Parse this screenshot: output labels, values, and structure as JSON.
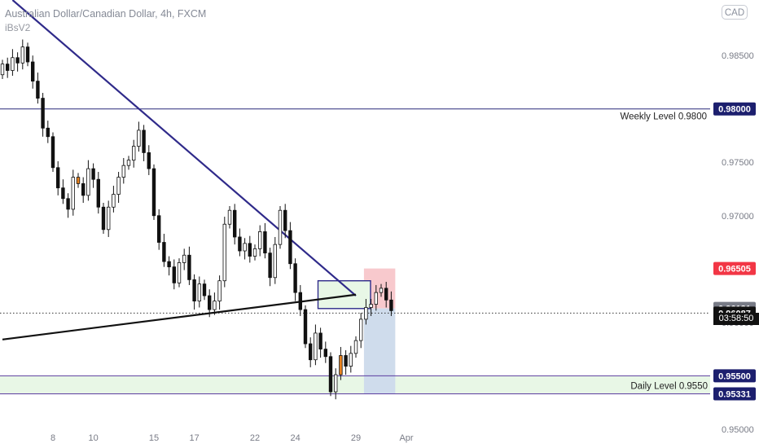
{
  "header": {
    "title": "Australian Dollar/Canadian Dollar, 4h, FXCM",
    "indicator": "iBsV2"
  },
  "currency_badge": "CAD",
  "countdown": "03:58:50",
  "chart_data": {
    "type": "candlestick",
    "symbol": "Australian Dollar/Canadian Dollar",
    "timeframe": "4h",
    "source": "FXCM",
    "yaxis": {
      "range": [
        0.949,
        0.9902
      ],
      "ticks": [
        "0.98500",
        "0.98000",
        "0.97500",
        "0.97000",
        "0.96500",
        "0.96000",
        "0.95500",
        "0.95000"
      ],
      "tick_values": [
        0.985,
        0.98,
        0.975,
        0.97,
        0.965,
        0.96,
        0.955,
        0.95
      ]
    },
    "xaxis": {
      "ticks": [
        "8",
        "10",
        "15",
        "17",
        "22",
        "24",
        "29",
        "Apr"
      ],
      "tick_index": [
        10,
        18,
        30,
        38,
        50,
        58,
        70,
        80
      ]
    },
    "candles_close": [
      0.9842,
      0.9836,
      0.9848,
      0.9843,
      0.9858,
      0.9844,
      0.9826,
      0.981,
      0.9782,
      0.9774,
      0.9745,
      0.9726,
      0.9716,
      0.9706,
      0.9736,
      0.973,
      0.9719,
      0.9744,
      0.9734,
      0.9708,
      0.9687,
      0.9708,
      0.972,
      0.9736,
      0.9747,
      0.9752,
      0.9765,
      0.978,
      0.9759,
      0.9744,
      0.97,
      0.9675,
      0.9657,
      0.9652,
      0.9637,
      0.9656,
      0.9663,
      0.964,
      0.962,
      0.9636,
      0.9625,
      0.9612,
      0.962,
      0.9639,
      0.9692,
      0.9705,
      0.968,
      0.9667,
      0.9674,
      0.9662,
      0.9669,
      0.9685,
      0.9665,
      0.9642,
      0.9673,
      0.9705,
      0.9686,
      0.9655,
      0.9628,
      0.9612,
      0.958,
      0.9565,
      0.959,
      0.9575,
      0.9568,
      0.9535,
      0.9551,
      0.9569,
      0.9559,
      0.9571,
      0.9583,
      0.9603,
      0.9614,
      0.9617,
      0.9628,
      0.9632,
      0.9621,
      0.9611
    ],
    "levels": [
      {
        "label": "Weekly Level 0.9800",
        "value": 0.98,
        "price_label": "0.98000",
        "color": "#2a2a7a"
      },
      {
        "label": "Daily Level 0.9550",
        "value": 0.955,
        "price_label": "0.95500",
        "color": "#5c3da0"
      },
      {
        "label": "",
        "value": 0.95331,
        "price_label": "0.95331",
        "color": "#5c3da0"
      }
    ],
    "price_markers": [
      {
        "value": 0.96505,
        "label": "0.96505",
        "color": "#f23645",
        "kind": "stop-loss"
      },
      {
        "value": 0.96131,
        "label": "0.96131",
        "color": "#787b86",
        "kind": "entry"
      },
      {
        "value": 0.96087,
        "label": "0.96087",
        "color": "#111111",
        "kind": "last-price"
      }
    ],
    "trendlines": [
      {
        "name": "descending-trendline",
        "from": [
          2,
          0.9902
        ],
        "to": [
          70,
          0.9625
        ],
        "color": "#2f2a8a"
      },
      {
        "name": "ascending-trendline",
        "from": [
          0,
          0.9584
        ],
        "to": [
          70,
          0.9626
        ],
        "color": "#111111"
      }
    ],
    "zones": [
      {
        "name": "daily-support-zone",
        "top": 0.955,
        "bottom": 0.95331,
        "color": "#e8f7e6"
      },
      {
        "name": "resistance-box",
        "top": 0.9639,
        "bottom": 0.9613,
        "color": "#e8f7e6"
      }
    ],
    "position": {
      "type": "short",
      "entry": 0.96131,
      "stop": 0.96505,
      "target": 0.95331,
      "risk_color": "#f8c9cd",
      "reward_color": "#cfdcec"
    },
    "colors": {
      "up_body": "#ffffff",
      "down_body": "#111111",
      "wick": "#111111",
      "signal_body": "#e8821f"
    },
    "signal_candles": [
      15,
      67
    ],
    "grid": false,
    "legend": "none"
  }
}
